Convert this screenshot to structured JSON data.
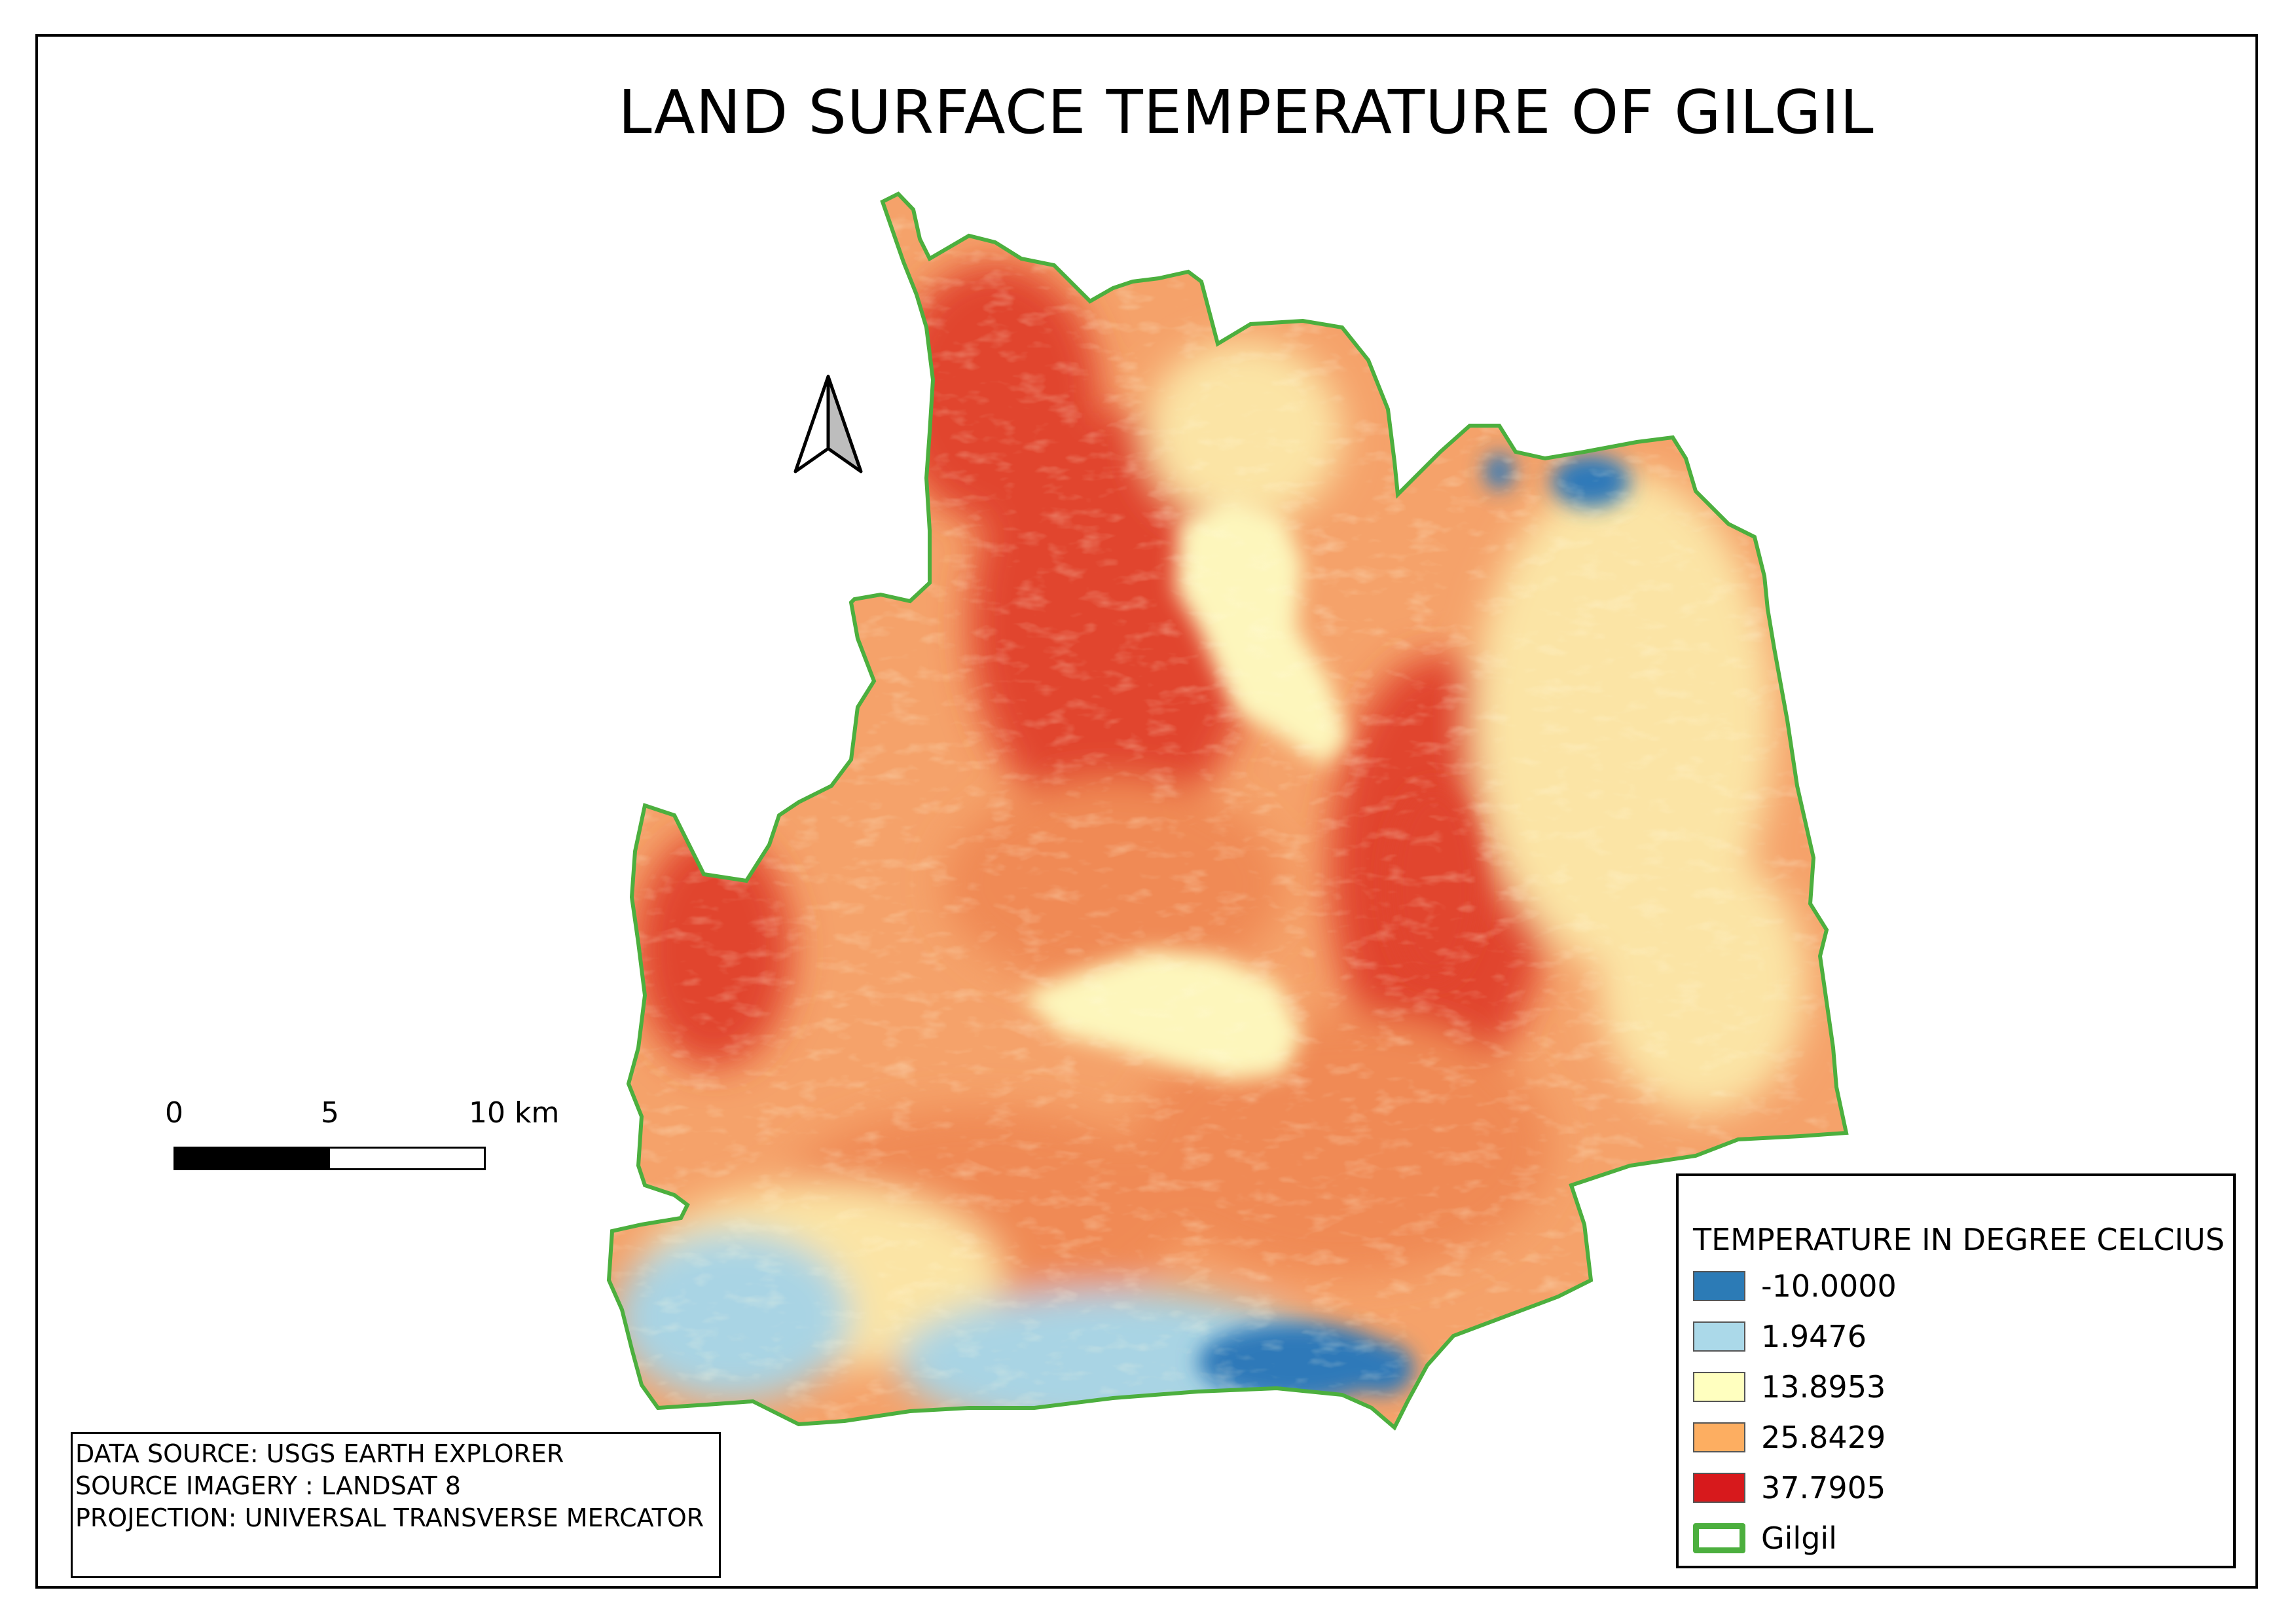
{
  "title": "LAND SURFACE TEMPERATURE OF GILGIL",
  "scale_bar": {
    "labels": [
      "0",
      "5",
      "10 km"
    ]
  },
  "legend": {
    "title": "TEMPERATURE IN DEGREE CELCIUS",
    "items": [
      {
        "label": "-10.0000",
        "color": "#2c7bb6"
      },
      {
        "label": "1.9476",
        "color": "#abd9e9"
      },
      {
        "label": "13.8953",
        "color": "#ffffbf"
      },
      {
        "label": "25.8429",
        "color": "#fdae61"
      },
      {
        "label": "37.7905",
        "color": "#d7191c"
      }
    ],
    "boundary": {
      "label": "Gilgil",
      "color": "#4caf3e"
    }
  },
  "source_box": {
    "lines": [
      "DATA SOURCE: USGS EARTH EXPLORER",
      "SOURCE IMAGERY : LANDSAT 8",
      "PROJECTION: UNIVERSAL TRANSVERSE MERCATOR"
    ]
  },
  "map": {
    "boundary_name": "Gilgil",
    "colors": {
      "base": "#f5a26a",
      "hot": "#e1452f",
      "warm": "#f08a55",
      "cool": "#fbe4a5",
      "pale": "#fdf6bc",
      "cold": "#a9d4e4",
      "coldest": "#2f79b9",
      "boundary": "#4caf3e"
    }
  }
}
